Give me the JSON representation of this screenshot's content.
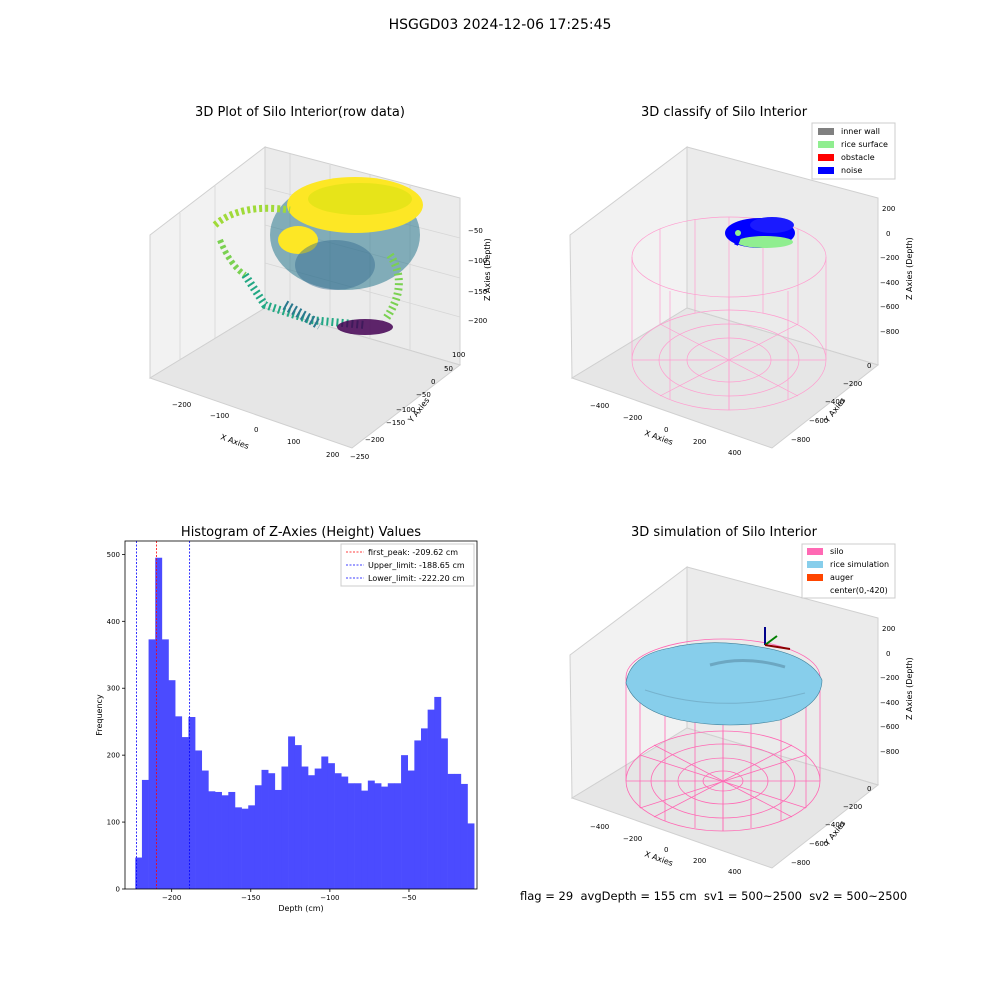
{
  "suptitle": "HSGGD03 2024-12-06 17:25:45",
  "status_line": "flag = 29  avgDepth = 155 cm  sv1 = 500~2500  sv2 = 500~2500",
  "colors": {
    "histogram_bar": "#4b4bff",
    "first_peak_line": "#ff0000",
    "limit_line": "#0000ff",
    "silo_wireframe": "#ff69b4",
    "rice_simulation": "#87ceeb",
    "auger": "#ff4500",
    "inner_wall": "#808080",
    "rice_surface": "#90ee90",
    "obstacle": "#ff0000",
    "noise": "#0000ff"
  },
  "chart_data": [
    {
      "type": "scatter",
      "subtype": "3d-scatter",
      "title": "3D Plot of Silo Interior(row data)",
      "xlabel": "X Axies",
      "ylabel": "Y Axies",
      "zlabel": "Z Axies (Depth)",
      "x_ticks": [
        "−200",
        "−100",
        "0",
        "100",
        "200"
      ],
      "y_ticks": [
        "100",
        "50",
        "0",
        "−50",
        "−100",
        "−150",
        "−200",
        "−250"
      ],
      "z_ticks": [
        "−50",
        "−100",
        "−150",
        "−200"
      ],
      "colormap": "viridis",
      "grid": true
    },
    {
      "type": "scatter",
      "subtype": "3d-classified",
      "title": "3D classify of Silo Interior",
      "xlabel": "X Axies",
      "ylabel": "Y Axies",
      "zlabel": "Z Axies (Depth)",
      "x_ticks": [
        "−400",
        "−200",
        "0",
        "200",
        "400"
      ],
      "y_ticks": [
        "0",
        "−200",
        "−400",
        "−600",
        "−800"
      ],
      "z_ticks": [
        "200",
        "0",
        "−200",
        "−400",
        "−600",
        "−800"
      ],
      "legend": [
        "inner wall",
        "rice surface",
        "obstacle",
        "noise"
      ],
      "legend_position": "top-right",
      "grid": true
    },
    {
      "type": "bar",
      "subtype": "histogram",
      "title": "Histogram of Z-Axies (Height) Values",
      "xlabel": "Depth (cm)",
      "ylabel": "Frequency",
      "bin_start": -223,
      "bin_width": 4.2,
      "values": [
        47,
        163,
        373,
        495,
        373,
        312,
        258,
        227,
        257,
        207,
        177,
        146,
        145,
        140,
        145,
        122,
        120,
        125,
        155,
        178,
        173,
        148,
        183,
        228,
        215,
        183,
        170,
        180,
        198,
        188,
        173,
        168,
        158,
        158,
        147,
        162,
        158,
        153,
        158,
        158,
        200,
        177,
        222,
        240,
        268,
        287,
        225,
        172,
        172,
        157,
        98
      ],
      "xlim": [
        -229.5,
        -7
      ],
      "ylim": [
        0,
        520
      ],
      "x_ticks": [
        -200,
        -150,
        -100,
        -50
      ],
      "x_tick_labels": [
        "−200",
        "−150",
        "−100",
        "−50"
      ],
      "y_ticks": [
        0,
        100,
        200,
        300,
        400,
        500
      ],
      "vlines": [
        {
          "name": "first_peak",
          "x": -209.62,
          "color": "#ff0000"
        },
        {
          "name": "Upper_limit",
          "x": -188.65,
          "color": "#0000ff"
        },
        {
          "name": "Lower_limit",
          "x": -222.2,
          "color": "#0000ff"
        }
      ],
      "legend": [
        "first_peak: -209.62 cm",
        "Upper_limit: -188.65 cm",
        "Lower_limit: -222.20 cm"
      ],
      "legend_position": "top-right"
    },
    {
      "type": "area",
      "subtype": "3d-surface",
      "title": "3D simulation of Silo Interior",
      "xlabel": "X Axies",
      "ylabel": "Y Axies",
      "zlabel": "Z Axies (Depth)",
      "x_ticks": [
        "−400",
        "−200",
        "0",
        "200",
        "400"
      ],
      "y_ticks": [
        "0",
        "−200",
        "−400",
        "−600",
        "−800"
      ],
      "z_ticks": [
        "200",
        "0",
        "−200",
        "−400",
        "−600",
        "−800"
      ],
      "legend": [
        "silo",
        "rice simulation",
        "auger",
        "center(0,-420)"
      ],
      "legend_position": "top-right",
      "grid": true
    }
  ]
}
